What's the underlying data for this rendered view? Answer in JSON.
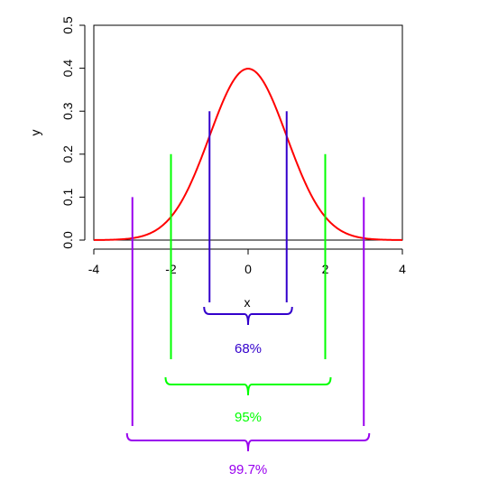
{
  "chart_data": {
    "type": "line",
    "xlabel": "x",
    "ylabel": "y",
    "xlim": [
      -4,
      4
    ],
    "ylim": [
      0,
      0.5
    ],
    "x_ticks": [
      {
        "value": -4,
        "label": "-4"
      },
      {
        "value": -2,
        "label": "-2"
      },
      {
        "value": 0,
        "label": "0"
      },
      {
        "value": 2,
        "label": "2"
      },
      {
        "value": 4,
        "label": "4"
      }
    ],
    "y_ticks": [
      {
        "value": 0.0,
        "label": "0.0"
      },
      {
        "value": 0.1,
        "label": "0.1"
      },
      {
        "value": 0.2,
        "label": "0.2"
      },
      {
        "value": 0.3,
        "label": "0.3"
      },
      {
        "value": 0.4,
        "label": "0.4"
      },
      {
        "value": 0.5,
        "label": "0.5"
      }
    ],
    "series": [
      {
        "color": "#ff0000",
        "curve": "standard normal density",
        "x": [
          -4,
          -3.5,
          -3,
          -2.5,
          -2,
          -1.5,
          -1,
          -0.5,
          0,
          0.5,
          1,
          1.5,
          2,
          2.5,
          3,
          3.5,
          4
        ],
        "y": [
          0.0001,
          0.0009,
          0.0044,
          0.0175,
          0.054,
          0.1295,
          0.242,
          0.3521,
          0.3989,
          0.3521,
          0.242,
          0.1295,
          0.054,
          0.0175,
          0.0044,
          0.0009,
          0.0001
        ]
      }
    ],
    "intervals": [
      {
        "label": "68%",
        "color": "#3300cc",
        "x_low": -1,
        "x_high": 1,
        "line_top": 0.3
      },
      {
        "label": "95%",
        "color": "#00ff00",
        "x_low": -2,
        "x_high": 2,
        "line_top": 0.2
      },
      {
        "label": "99.7%",
        "color": "#9900ee",
        "x_low": -3,
        "x_high": 3,
        "line_top": 0.1
      }
    ]
  }
}
